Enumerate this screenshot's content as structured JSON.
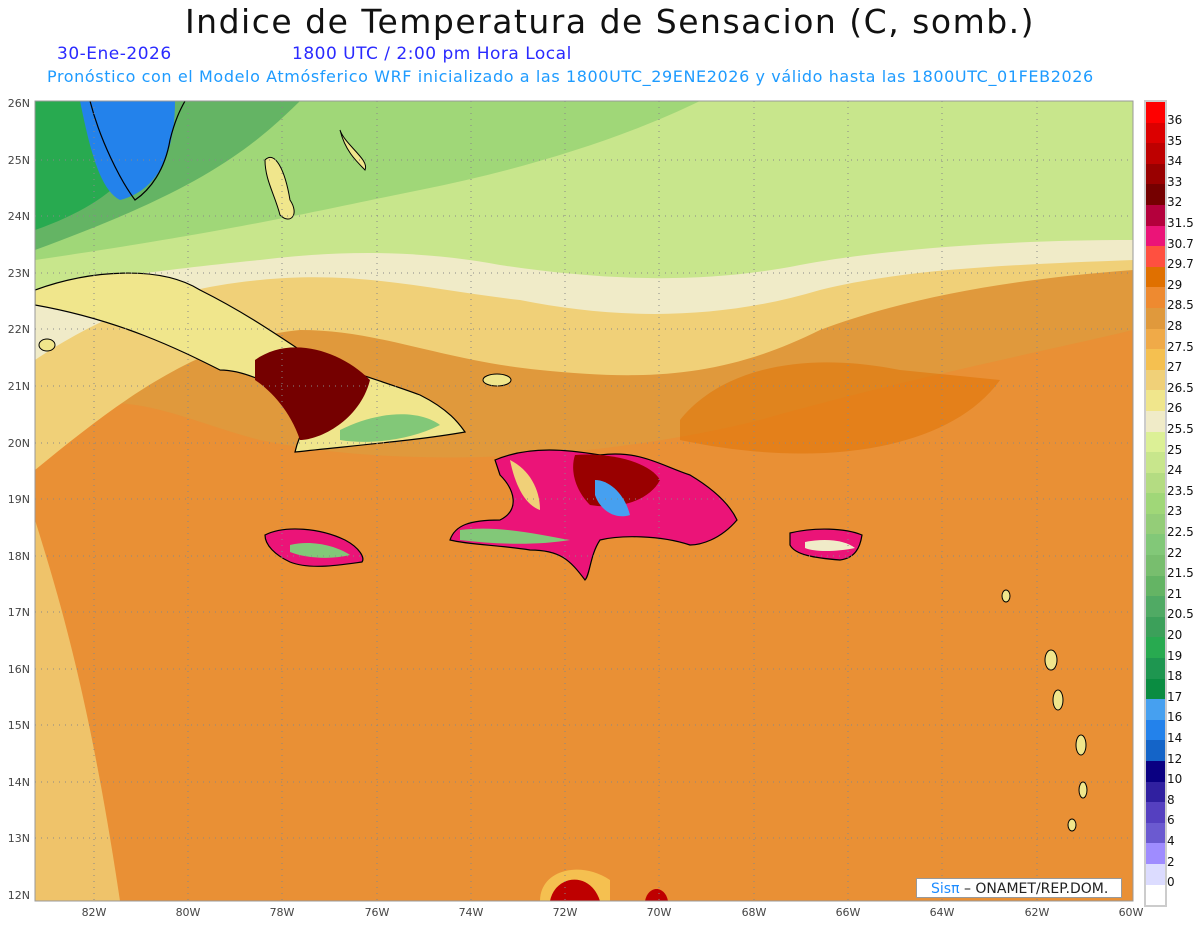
{
  "header": {
    "title": "Indice de Temperatura de Sensacion (C, somb.)",
    "date": "30-Ene-2026",
    "time": "1800 UTC / 2:00 pm Hora Local",
    "subtitle": "Pronóstico con el Modelo Atmósferico WRF inicializado a las 1800UTC_29ENE2026 y válido hasta las  1800UTC_01FEB2026"
  },
  "axes": {
    "lon_labels": [
      "82W",
      "80W",
      "78W",
      "76W",
      "74W",
      "72W",
      "70W",
      "68W",
      "66W",
      "64W",
      "62W",
      "60W"
    ],
    "lat_labels": [
      "26N",
      "25N",
      "24N",
      "23N",
      "22N",
      "21N",
      "20N",
      "19N",
      "18N",
      "17N",
      "16N",
      "15N",
      "14N",
      "13N",
      "12N"
    ]
  },
  "colorbar": {
    "labels": [
      "36",
      "35",
      "34",
      "33",
      "32",
      "31.5",
      "30.7",
      "29.7",
      "29",
      "28.5",
      "28",
      "27.5",
      "27",
      "26.5",
      "26",
      "25.5",
      "25",
      "24",
      "23.5",
      "23",
      "22.5",
      "22",
      "21.5",
      "21",
      "20.5",
      "20",
      "19",
      "18",
      "17",
      "16",
      "14",
      "12",
      "10",
      "8",
      "6",
      "4",
      "2",
      "0"
    ],
    "colors": [
      "#ff0000",
      "#dc0000",
      "#be0000",
      "#990000",
      "#750000",
      "#b4003c",
      "#eb1478",
      "#ff5040",
      "#e07000",
      "#ee8a30",
      "#e0993c",
      "#f0aa48",
      "#f5c050",
      "#f0d078",
      "#f0e68c",
      "#f0ebc8",
      "#dcf096",
      "#c8e68c",
      "#b4dc82",
      "#a0d778",
      "#94cd78",
      "#82c878",
      "#78be6e",
      "#64b464",
      "#50aa64",
      "#3ca05a",
      "#28aa50",
      "#1e9650",
      "#0a8c41",
      "#46a0f0",
      "#2382eb",
      "#1464c8",
      "#0a0082",
      "#3020a0",
      "#5540c0",
      "#6b5ad0",
      "#9f8cff",
      "#dcdcff",
      "#ffffff"
    ]
  },
  "credit": {
    "brand": "Sisπ",
    "text": "– ONAMET/REP.DOM."
  }
}
